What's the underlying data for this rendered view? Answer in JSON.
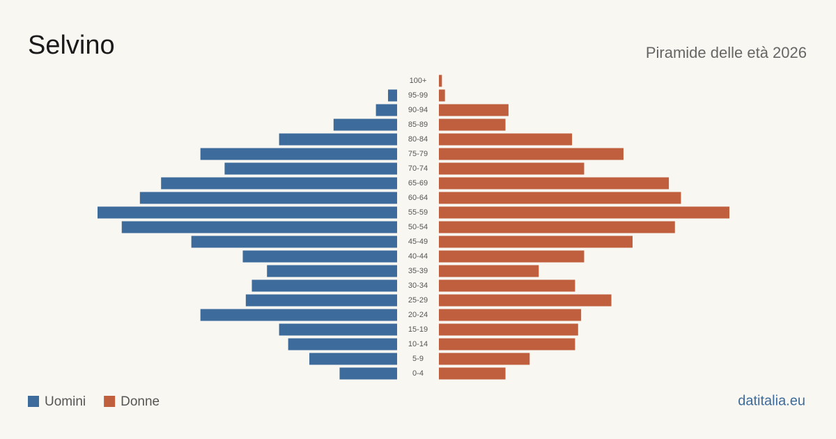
{
  "chart_data": {
    "type": "pyramid",
    "title": "Selvino",
    "subtitle": "Piramide delle età 2026",
    "source": "datitalia.eu",
    "categories": [
      "100+",
      "95-99",
      "90-94",
      "85-89",
      "80-84",
      "75-79",
      "70-74",
      "65-69",
      "60-64",
      "55-59",
      "50-54",
      "45-49",
      "40-44",
      "35-39",
      "30-34",
      "25-29",
      "20-24",
      "15-19",
      "10-14",
      "5-9",
      "0-4"
    ],
    "series": [
      {
        "name": "Uomini",
        "color": "#3d6b9c",
        "values": [
          0,
          3,
          7,
          21,
          39,
          65,
          57,
          78,
          85,
          99,
          91,
          68,
          51,
          43,
          48,
          50,
          65,
          39,
          36,
          29,
          19
        ]
      },
      {
        "name": "Donne",
        "color": "#bf5f3e",
        "values": [
          1,
          2,
          23,
          22,
          44,
          61,
          48,
          76,
          80,
          96,
          78,
          64,
          48,
          33,
          45,
          57,
          47,
          46,
          45,
          30,
          22
        ]
      }
    ]
  }
}
